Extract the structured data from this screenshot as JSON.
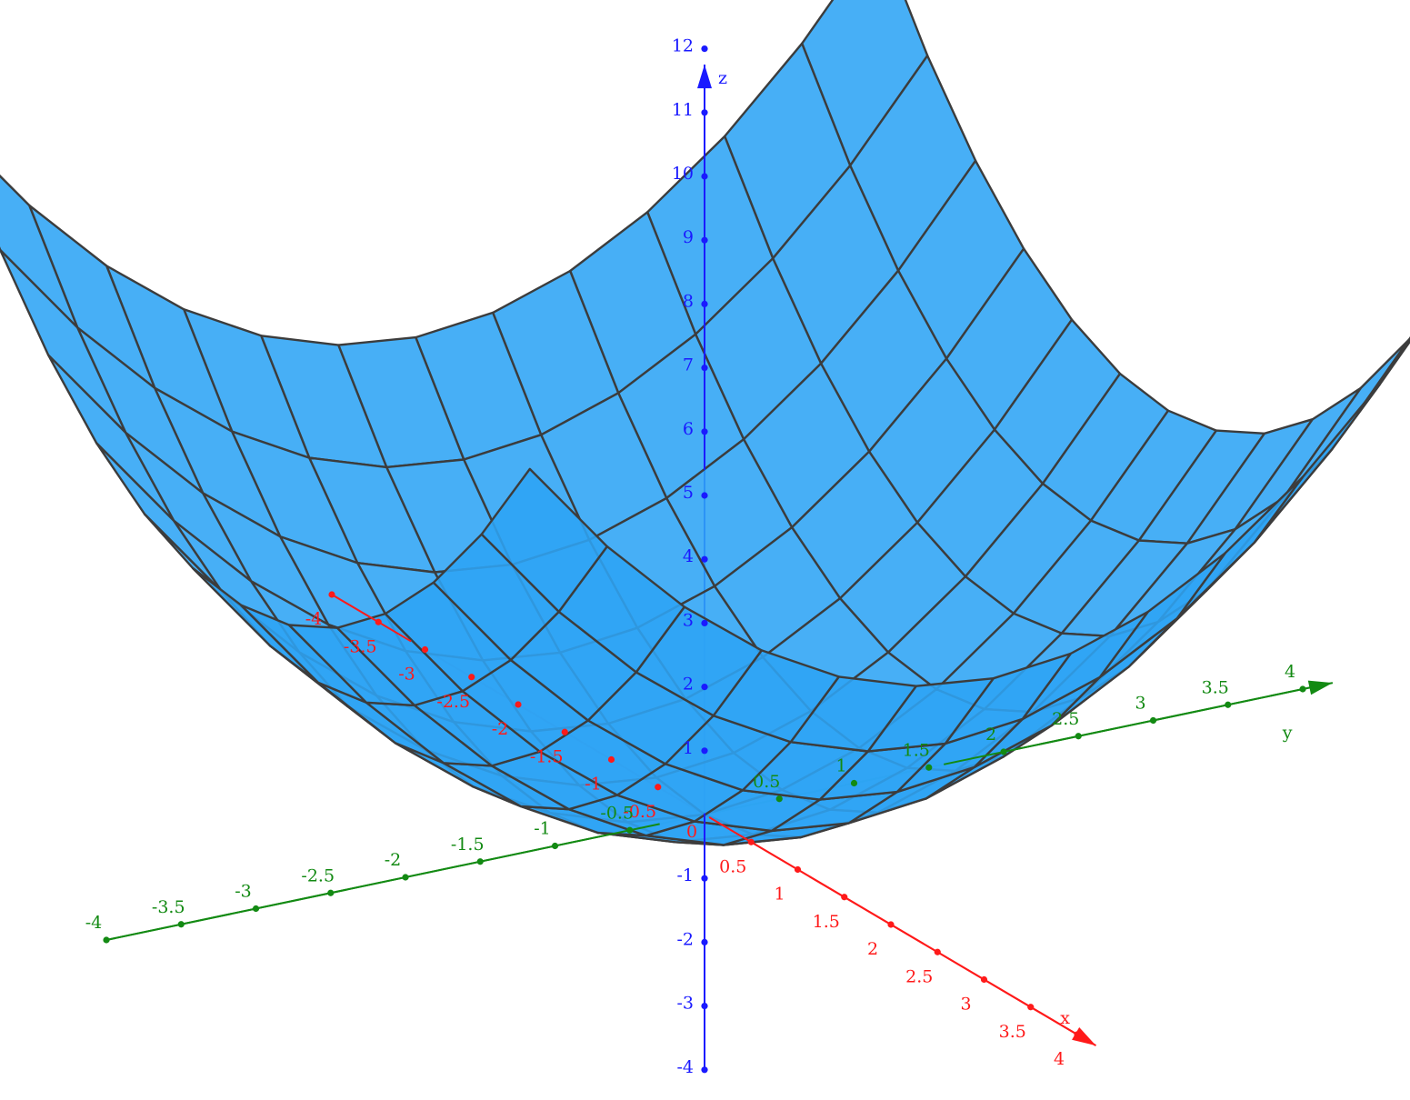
{
  "chart_data": {
    "type": "surface",
    "surface": {
      "equation_form": "z = 0.5*x^2 + 0.5*y^2",
      "x_domain": [
        -3.1,
        3.1
      ],
      "y_domain": [
        -3.1,
        3.1
      ],
      "grid_divisions": 12,
      "fill_color": "#2ea4f5",
      "edge_color": "#3c3c3c"
    },
    "axes": {
      "x": {
        "label": "x",
        "color": "#ff1a1a",
        "range": [
          -4,
          4
        ],
        "ticks": [
          -4,
          -3.5,
          -3,
          -2.5,
          -2,
          -1.5,
          -1,
          -0.5,
          0,
          0.5,
          1,
          1.5,
          2,
          2.5,
          3,
          3.5,
          4
        ],
        "tick_labels": [
          "-4",
          "-3.5",
          "-3",
          "-2.5",
          "-2",
          "-1.5",
          "-1",
          "-0.5",
          "0",
          "0.5",
          "1",
          "1.5",
          "2",
          "2.5",
          "3",
          "3.5",
          "4"
        ]
      },
      "y": {
        "label": "y",
        "color": "#138a13",
        "range": [
          -4,
          4
        ],
        "ticks": [
          -4,
          -3.5,
          -3,
          -2.5,
          -2,
          -1.5,
          -1,
          -0.5,
          0,
          0.5,
          1,
          1.5,
          2,
          2.5,
          3,
          3.5,
          4
        ],
        "tick_labels": [
          "-4",
          "-3.5",
          "-3",
          "-2.5",
          "-2",
          "-1.5",
          "-1",
          "-0.5",
          "0",
          "0.5",
          "1",
          "1.5",
          "2",
          "2.5",
          "3",
          "3.5",
          "4"
        ]
      },
      "z": {
        "label": "z",
        "color": "#1a1aff",
        "range": [
          -4,
          12
        ],
        "ticks": [
          -4,
          -3,
          -2,
          -1,
          1,
          2,
          3,
          4,
          5,
          6,
          7,
          8,
          9,
          10,
          11,
          12
        ],
        "tick_labels": [
          "-4",
          "-3",
          "-2",
          "-1",
          "1",
          "2",
          "3",
          "4",
          "5",
          "6",
          "7",
          "8",
          "9",
          "10",
          "11",
          "12"
        ]
      }
    },
    "grid": false,
    "legend": "none",
    "title": ""
  }
}
